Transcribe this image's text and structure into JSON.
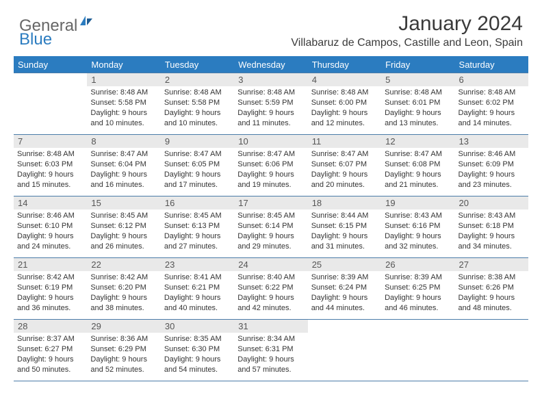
{
  "brand": {
    "part1": "General",
    "part2": "Blue"
  },
  "title": "January 2024",
  "location": "Villabaruz de Campos, Castille and Leon, Spain",
  "colors": {
    "header_bg": "#2b7cc0",
    "header_text": "#ffffff",
    "daynum_bg": "#e9e9e9",
    "row_border": "#4a7ba8",
    "text": "#333333",
    "brand_blue": "#2b7cc0",
    "brand_gray": "#666666"
  },
  "weekdays": [
    "Sunday",
    "Monday",
    "Tuesday",
    "Wednesday",
    "Thursday",
    "Friday",
    "Saturday"
  ],
  "weeks": [
    [
      {
        "n": "",
        "sr": "",
        "ss": "",
        "dl": ""
      },
      {
        "n": "1",
        "sr": "Sunrise: 8:48 AM",
        "ss": "Sunset: 5:58 PM",
        "dl": "Daylight: 9 hours and 10 minutes."
      },
      {
        "n": "2",
        "sr": "Sunrise: 8:48 AM",
        "ss": "Sunset: 5:58 PM",
        "dl": "Daylight: 9 hours and 10 minutes."
      },
      {
        "n": "3",
        "sr": "Sunrise: 8:48 AM",
        "ss": "Sunset: 5:59 PM",
        "dl": "Daylight: 9 hours and 11 minutes."
      },
      {
        "n": "4",
        "sr": "Sunrise: 8:48 AM",
        "ss": "Sunset: 6:00 PM",
        "dl": "Daylight: 9 hours and 12 minutes."
      },
      {
        "n": "5",
        "sr": "Sunrise: 8:48 AM",
        "ss": "Sunset: 6:01 PM",
        "dl": "Daylight: 9 hours and 13 minutes."
      },
      {
        "n": "6",
        "sr": "Sunrise: 8:48 AM",
        "ss": "Sunset: 6:02 PM",
        "dl": "Daylight: 9 hours and 14 minutes."
      }
    ],
    [
      {
        "n": "7",
        "sr": "Sunrise: 8:48 AM",
        "ss": "Sunset: 6:03 PM",
        "dl": "Daylight: 9 hours and 15 minutes."
      },
      {
        "n": "8",
        "sr": "Sunrise: 8:47 AM",
        "ss": "Sunset: 6:04 PM",
        "dl": "Daylight: 9 hours and 16 minutes."
      },
      {
        "n": "9",
        "sr": "Sunrise: 8:47 AM",
        "ss": "Sunset: 6:05 PM",
        "dl": "Daylight: 9 hours and 17 minutes."
      },
      {
        "n": "10",
        "sr": "Sunrise: 8:47 AM",
        "ss": "Sunset: 6:06 PM",
        "dl": "Daylight: 9 hours and 19 minutes."
      },
      {
        "n": "11",
        "sr": "Sunrise: 8:47 AM",
        "ss": "Sunset: 6:07 PM",
        "dl": "Daylight: 9 hours and 20 minutes."
      },
      {
        "n": "12",
        "sr": "Sunrise: 8:47 AM",
        "ss": "Sunset: 6:08 PM",
        "dl": "Daylight: 9 hours and 21 minutes."
      },
      {
        "n": "13",
        "sr": "Sunrise: 8:46 AM",
        "ss": "Sunset: 6:09 PM",
        "dl": "Daylight: 9 hours and 23 minutes."
      }
    ],
    [
      {
        "n": "14",
        "sr": "Sunrise: 8:46 AM",
        "ss": "Sunset: 6:10 PM",
        "dl": "Daylight: 9 hours and 24 minutes."
      },
      {
        "n": "15",
        "sr": "Sunrise: 8:45 AM",
        "ss": "Sunset: 6:12 PM",
        "dl": "Daylight: 9 hours and 26 minutes."
      },
      {
        "n": "16",
        "sr": "Sunrise: 8:45 AM",
        "ss": "Sunset: 6:13 PM",
        "dl": "Daylight: 9 hours and 27 minutes."
      },
      {
        "n": "17",
        "sr": "Sunrise: 8:45 AM",
        "ss": "Sunset: 6:14 PM",
        "dl": "Daylight: 9 hours and 29 minutes."
      },
      {
        "n": "18",
        "sr": "Sunrise: 8:44 AM",
        "ss": "Sunset: 6:15 PM",
        "dl": "Daylight: 9 hours and 31 minutes."
      },
      {
        "n": "19",
        "sr": "Sunrise: 8:43 AM",
        "ss": "Sunset: 6:16 PM",
        "dl": "Daylight: 9 hours and 32 minutes."
      },
      {
        "n": "20",
        "sr": "Sunrise: 8:43 AM",
        "ss": "Sunset: 6:18 PM",
        "dl": "Daylight: 9 hours and 34 minutes."
      }
    ],
    [
      {
        "n": "21",
        "sr": "Sunrise: 8:42 AM",
        "ss": "Sunset: 6:19 PM",
        "dl": "Daylight: 9 hours and 36 minutes."
      },
      {
        "n": "22",
        "sr": "Sunrise: 8:42 AM",
        "ss": "Sunset: 6:20 PM",
        "dl": "Daylight: 9 hours and 38 minutes."
      },
      {
        "n": "23",
        "sr": "Sunrise: 8:41 AM",
        "ss": "Sunset: 6:21 PM",
        "dl": "Daylight: 9 hours and 40 minutes."
      },
      {
        "n": "24",
        "sr": "Sunrise: 8:40 AM",
        "ss": "Sunset: 6:22 PM",
        "dl": "Daylight: 9 hours and 42 minutes."
      },
      {
        "n": "25",
        "sr": "Sunrise: 8:39 AM",
        "ss": "Sunset: 6:24 PM",
        "dl": "Daylight: 9 hours and 44 minutes."
      },
      {
        "n": "26",
        "sr": "Sunrise: 8:39 AM",
        "ss": "Sunset: 6:25 PM",
        "dl": "Daylight: 9 hours and 46 minutes."
      },
      {
        "n": "27",
        "sr": "Sunrise: 8:38 AM",
        "ss": "Sunset: 6:26 PM",
        "dl": "Daylight: 9 hours and 48 minutes."
      }
    ],
    [
      {
        "n": "28",
        "sr": "Sunrise: 8:37 AM",
        "ss": "Sunset: 6:27 PM",
        "dl": "Daylight: 9 hours and 50 minutes."
      },
      {
        "n": "29",
        "sr": "Sunrise: 8:36 AM",
        "ss": "Sunset: 6:29 PM",
        "dl": "Daylight: 9 hours and 52 minutes."
      },
      {
        "n": "30",
        "sr": "Sunrise: 8:35 AM",
        "ss": "Sunset: 6:30 PM",
        "dl": "Daylight: 9 hours and 54 minutes."
      },
      {
        "n": "31",
        "sr": "Sunrise: 8:34 AM",
        "ss": "Sunset: 6:31 PM",
        "dl": "Daylight: 9 hours and 57 minutes."
      },
      {
        "n": "",
        "sr": "",
        "ss": "",
        "dl": ""
      },
      {
        "n": "",
        "sr": "",
        "ss": "",
        "dl": ""
      },
      {
        "n": "",
        "sr": "",
        "ss": "",
        "dl": ""
      }
    ]
  ]
}
